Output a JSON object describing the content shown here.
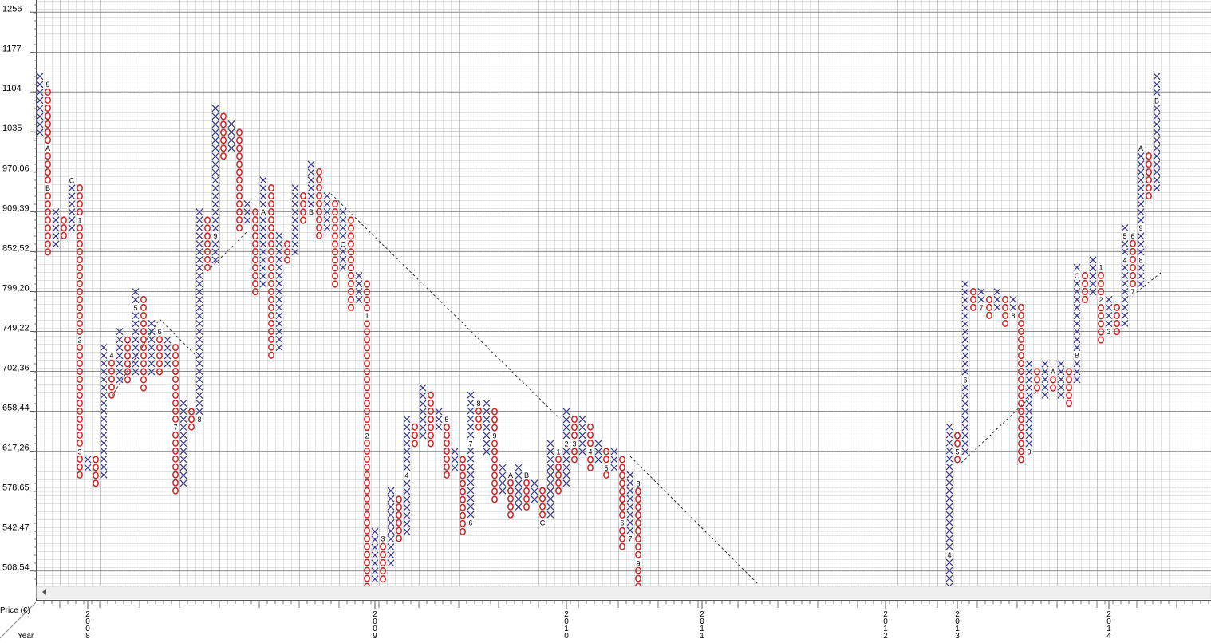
{
  "chart_data": {
    "type": "point_and_figure",
    "y_axis_label": "Price (€)",
    "x_axis_label": "Year",
    "log_scale": true,
    "grid": true,
    "x_color": "#33338a",
    "o_color": "#d02020",
    "ylim": [
      496,
      1281
    ],
    "yticks": [
      {
        "value": 508.54,
        "label": "508,54"
      },
      {
        "value": 542.47,
        "label": "542,47"
      },
      {
        "value": 578.65,
        "label": "578,65"
      },
      {
        "value": 617.26,
        "label": "617,26"
      },
      {
        "value": 658.44,
        "label": "658,44"
      },
      {
        "value": 702.36,
        "label": "702,36"
      },
      {
        "value": 749.22,
        "label": "749,22"
      },
      {
        "value": 799.2,
        "label": "799,20"
      },
      {
        "value": 852.52,
        "label": "852,52"
      },
      {
        "value": 909.39,
        "label": "909,39"
      },
      {
        "value": 970.06,
        "label": "970,06"
      },
      1035,
      1104,
      1177,
      1256
    ],
    "x_labels": [
      {
        "value": 6,
        "label": "2008"
      },
      {
        "value": 42,
        "label": "2009"
      },
      {
        "value": 66,
        "label": "2010"
      },
      {
        "value": 83,
        "label": "2011"
      },
      {
        "value": 106,
        "label": "2012"
      },
      {
        "value": 115,
        "label": "2013"
      },
      {
        "value": 134,
        "label": "2014"
      }
    ],
    "columns": [
      {
        "kind": "X",
        "low": 1034,
        "high": 1132
      },
      {
        "kind": "O",
        "low": 852,
        "high": 1118,
        "markers": [
          {
            "value": 1118,
            "label": "9"
          },
          {
            "value": 1008,
            "label": "A"
          },
          {
            "value": 945,
            "label": "B"
          }
        ]
      },
      {
        "kind": "X",
        "low": 863,
        "high": 909
      },
      {
        "kind": "O",
        "low": 875,
        "high": 897
      },
      {
        "kind": "X",
        "low": 886,
        "high": 957,
        "markers": [
          {
            "value": 957,
            "label": "C"
          }
        ]
      },
      {
        "kind": "O",
        "low": 594,
        "high": 945,
        "markers": [
          {
            "value": 897,
            "label": "1"
          },
          {
            "value": 739,
            "label": "2"
          },
          {
            "value": 617,
            "label": "3"
          }
        ]
      },
      {
        "kind": "X",
        "low": 601,
        "high": 609
      },
      {
        "kind": "O",
        "low": 586,
        "high": 609
      },
      {
        "kind": "X",
        "low": 594,
        "high": 730
      },
      {
        "kind": "O",
        "low": 676,
        "high": 721,
        "markers": [
          {
            "value": 721,
            "label": "4"
          }
        ]
      },
      {
        "kind": "X",
        "low": 693,
        "high": 749
      },
      {
        "kind": "O",
        "low": 693,
        "high": 739
      },
      {
        "kind": "X",
        "low": 702,
        "high": 799,
        "markers": [
          {
            "value": 779,
            "label": "5"
          }
        ]
      },
      {
        "kind": "O",
        "low": 684,
        "high": 789
      },
      {
        "kind": "X",
        "low": 702,
        "high": 759
      },
      {
        "kind": "O",
        "low": 702,
        "high": 749,
        "markers": [
          {
            "value": 749,
            "label": "6"
          }
        ]
      },
      {
        "kind": "X",
        "low": 711,
        "high": 739
      },
      {
        "kind": "O",
        "low": 579,
        "high": 730,
        "markers": [
          {
            "value": 642,
            "label": "7"
          }
        ]
      },
      {
        "kind": "X",
        "low": 586,
        "high": 667
      },
      {
        "kind": "O",
        "low": 642,
        "high": 658
      },
      {
        "kind": "X",
        "low": 650,
        "high": 909,
        "markers": [
          {
            "value": 650,
            "label": "8"
          }
        ]
      },
      {
        "kind": "O",
        "low": 831,
        "high": 897
      },
      {
        "kind": "X",
        "low": 841,
        "high": 1075,
        "markers": [
          {
            "value": 875,
            "label": "9"
          }
        ]
      },
      {
        "kind": "O",
        "low": 995,
        "high": 1061
      },
      {
        "kind": "X",
        "low": 1008,
        "high": 1048
      },
      {
        "kind": "O",
        "low": 886,
        "high": 1034
      },
      {
        "kind": "X",
        "low": 897,
        "high": 921
      },
      {
        "kind": "O",
        "low": 799,
        "high": 909
      },
      {
        "kind": "X",
        "low": 809,
        "high": 957,
        "markers": [
          {
            "value": 909,
            "label": "A"
          }
        ]
      },
      {
        "kind": "O",
        "low": 721,
        "high": 945
      },
      {
        "kind": "X",
        "low": 730,
        "high": 875
      },
      {
        "kind": "O",
        "low": 841,
        "high": 863
      },
      {
        "kind": "X",
        "low": 852,
        "high": 945
      },
      {
        "kind": "O",
        "low": 897,
        "high": 933
      },
      {
        "kind": "X",
        "low": 909,
        "high": 982,
        "markers": [
          {
            "value": 909,
            "label": "B"
          }
        ]
      },
      {
        "kind": "O",
        "low": 875,
        "high": 970
      },
      {
        "kind": "X",
        "low": 886,
        "high": 933
      },
      {
        "kind": "O",
        "low": 809,
        "high": 921
      },
      {
        "kind": "X",
        "low": 831,
        "high": 909,
        "markers": [
          {
            "value": 863,
            "label": "C"
          }
        ]
      },
      {
        "kind": "O",
        "low": 779,
        "high": 897
      },
      {
        "kind": "X",
        "low": 789,
        "high": 820
      },
      {
        "kind": "O",
        "low": 496,
        "high": 809,
        "markers": [
          {
            "value": 769,
            "label": "1"
          },
          {
            "value": 633,
            "label": "2"
          }
        ]
      },
      {
        "kind": "X",
        "low": 502,
        "high": 542
      },
      {
        "kind": "O",
        "low": 502,
        "high": 536,
        "markers": [
          {
            "value": 536,
            "label": "3"
          }
        ]
      },
      {
        "kind": "X",
        "low": 515,
        "high": 579
      },
      {
        "kind": "O",
        "low": 536,
        "high": 571
      },
      {
        "kind": "X",
        "low": 542,
        "high": 650,
        "markers": [
          {
            "value": 594,
            "label": "4"
          }
        ]
      },
      {
        "kind": "O",
        "low": 625,
        "high": 642
      },
      {
        "kind": "X",
        "low": 633,
        "high": 684
      },
      {
        "kind": "O",
        "low": 625,
        "high": 676
      },
      {
        "kind": "X",
        "low": 642,
        "high": 658
      },
      {
        "kind": "O",
        "low": 594,
        "high": 650,
        "markers": [
          {
            "value": 650,
            "label": "5"
          }
        ]
      },
      {
        "kind": "X",
        "low": 601,
        "high": 617
      },
      {
        "kind": "O",
        "low": 542,
        "high": 609
      },
      {
        "kind": "X",
        "low": 550,
        "high": 676,
        "markers": [
          {
            "value": 625,
            "label": "7"
          },
          {
            "value": 550,
            "label": "6"
          }
        ]
      },
      {
        "kind": "O",
        "low": 642,
        "high": 667,
        "markers": [
          {
            "value": 667,
            "label": "8"
          }
        ]
      },
      {
        "kind": "X",
        "low": 617,
        "high": 667
      },
      {
        "kind": "O",
        "low": 571,
        "high": 658,
        "markers": [
          {
            "value": 633,
            "label": "9"
          }
        ]
      },
      {
        "kind": "X",
        "low": 579,
        "high": 601
      },
      {
        "kind": "O",
        "low": 557,
        "high": 594,
        "markers": [
          {
            "value": 594,
            "label": "A"
          }
        ]
      },
      {
        "kind": "X",
        "low": 564,
        "high": 601
      },
      {
        "kind": "O",
        "low": 564,
        "high": 594,
        "markers": [
          {
            "value": 594,
            "label": "B"
          }
        ]
      },
      {
        "kind": "X",
        "low": 571,
        "high": 586
      },
      {
        "kind": "O",
        "low": 550,
        "high": 579,
        "markers": [
          {
            "value": 550,
            "label": "C"
          }
        ]
      },
      {
        "kind": "X",
        "low": 557,
        "high": 625
      },
      {
        "kind": "O",
        "low": 579,
        "high": 617,
        "markers": [
          {
            "value": 617,
            "label": "1"
          }
        ]
      },
      {
        "kind": "X",
        "low": 586,
        "high": 658,
        "markers": [
          {
            "value": 625,
            "label": "2"
          }
        ]
      },
      {
        "kind": "O",
        "low": 609,
        "high": 650,
        "markers": [
          {
            "value": 625,
            "label": "3"
          }
        ]
      },
      {
        "kind": "X",
        "low": 617,
        "high": 650
      },
      {
        "kind": "O",
        "low": 601,
        "high": 642,
        "markers": [
          {
            "value": 617,
            "label": "4"
          }
        ]
      },
      {
        "kind": "X",
        "low": 609,
        "high": 625
      },
      {
        "kind": "O",
        "low": 594,
        "high": 617,
        "markers": [
          {
            "value": 601,
            "label": "5"
          }
        ]
      },
      {
        "kind": "X",
        "low": 601,
        "high": 617
      },
      {
        "kind": "O",
        "low": 529,
        "high": 609,
        "markers": [
          {
            "value": 550,
            "label": "6"
          }
        ]
      },
      {
        "kind": "X",
        "low": 536,
        "high": 594,
        "markers": [
          {
            "value": 536,
            "label": "7"
          }
        ]
      },
      {
        "kind": "O",
        "low": 496,
        "high": 586,
        "markers": [
          {
            "value": 586,
            "label": "8"
          },
          {
            "value": 515,
            "label": "9"
          }
        ]
      },
      null,
      null,
      null,
      null,
      null,
      null,
      null,
      null,
      null,
      null,
      null,
      null,
      null,
      null,
      null,
      null,
      null,
      null,
      null,
      null,
      null,
      null,
      null,
      null,
      null,
      null,
      null,
      null,
      null,
      null,
      null,
      null,
      null,
      null,
      null,
      null,
      null,
      null,
      {
        "kind": "X",
        "low": 496,
        "high": 642,
        "markers": [
          {
            "value": 522,
            "label": "4"
          }
        ]
      },
      {
        "kind": "O",
        "low": 609,
        "high": 633,
        "markers": [
          {
            "value": 617,
            "label": "5"
          }
        ]
      },
      {
        "kind": "X",
        "low": 617,
        "high": 809,
        "markers": [
          {
            "value": 693,
            "label": "6"
          }
        ]
      },
      {
        "kind": "O",
        "low": 779,
        "high": 799
      },
      {
        "kind": "X",
        "low": 779,
        "high": 799,
        "markers": [
          {
            "value": 779,
            "label": "7"
          }
        ]
      },
      {
        "kind": "O",
        "low": 769,
        "high": 789
      },
      {
        "kind": "X",
        "low": 779,
        "high": 799
      },
      {
        "kind": "O",
        "low": 759,
        "high": 789
      },
      {
        "kind": "X",
        "low": 769,
        "high": 789,
        "markers": [
          {
            "value": 769,
            "label": "8"
          }
        ]
      },
      {
        "kind": "O",
        "low": 609,
        "high": 779
      },
      {
        "kind": "X",
        "low": 617,
        "high": 711,
        "markers": [
          {
            "value": 617,
            "label": "9"
          }
        ]
      },
      {
        "kind": "O",
        "low": 684,
        "high": 702
      },
      {
        "kind": "X",
        "low": 676,
        "high": 711
      },
      {
        "kind": "O",
        "low": 684,
        "high": 702,
        "markers": [
          {
            "value": 702,
            "label": "A"
          }
        ]
      },
      {
        "kind": "X",
        "low": 676,
        "high": 711
      },
      {
        "kind": "O",
        "low": 667,
        "high": 702
      },
      {
        "kind": "X",
        "low": 693,
        "high": 831,
        "markers": [
          {
            "value": 721,
            "label": "B"
          },
          {
            "value": 820,
            "label": "C"
          }
        ]
      },
      {
        "kind": "O",
        "low": 789,
        "high": 820
      },
      {
        "kind": "X",
        "low": 799,
        "high": 841
      },
      {
        "kind": "O",
        "low": 739,
        "high": 831,
        "markers": [
          {
            "value": 831,
            "label": "1"
          },
          {
            "value": 789,
            "label": "2"
          }
        ]
      },
      {
        "kind": "X",
        "low": 749,
        "high": 789,
        "markers": [
          {
            "value": 749,
            "label": "3"
          }
        ]
      },
      {
        "kind": "O",
        "low": 749,
        "high": 779
      },
      {
        "kind": "X",
        "low": 759,
        "high": 886,
        "markers": [
          {
            "value": 841,
            "label": "4"
          },
          {
            "value": 875,
            "label": "5"
          }
        ]
      },
      {
        "kind": "O",
        "low": 799,
        "high": 875,
        "markers": [
          {
            "value": 875,
            "label": "6"
          },
          {
            "value": 799,
            "label": "7"
          }
        ]
      },
      {
        "kind": "X",
        "low": 809,
        "high": 1008,
        "markers": [
          {
            "value": 841,
            "label": "8"
          },
          {
            "value": 886,
            "label": "9"
          },
          {
            "value": 1008,
            "label": "A"
          }
        ]
      },
      {
        "kind": "O",
        "low": 933,
        "high": 995
      },
      {
        "kind": "X",
        "low": 945,
        "high": 1132,
        "markers": [
          {
            "value": 1089,
            "label": "B"
          }
        ]
      }
    ]
  }
}
